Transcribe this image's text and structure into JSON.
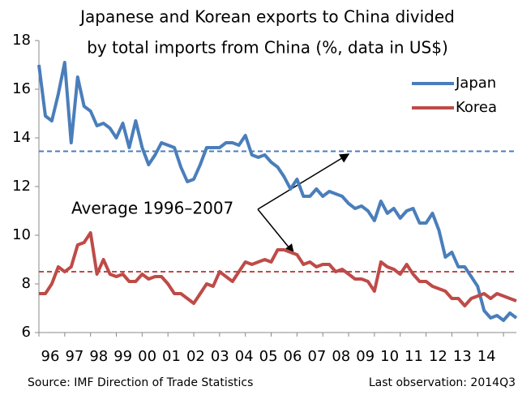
{
  "chart_data": {
    "type": "line",
    "title_lines": [
      "Japanese and Korean exports to China divided",
      "by total imports from China (%, data in US$)"
    ],
    "categories": [
      "96",
      null,
      null,
      null,
      "97",
      null,
      null,
      null,
      "98",
      null,
      null,
      null,
      "99",
      null,
      null,
      null,
      "00",
      null,
      null,
      null,
      "01",
      null,
      null,
      null,
      "02",
      null,
      null,
      null,
      "03",
      null,
      null,
      null,
      "04",
      null,
      null,
      null,
      "05",
      null,
      null,
      null,
      "06",
      null,
      null,
      null,
      "07",
      null,
      null,
      null,
      "08",
      null,
      null,
      null,
      "09",
      null,
      null,
      null,
      "10",
      null,
      null,
      null,
      "11",
      null,
      null,
      null,
      "12",
      null,
      null,
      null,
      "13",
      null,
      null,
      null,
      "14",
      null,
      null
    ],
    "series": [
      {
        "name": "Japan",
        "color": "#4a7ebb",
        "values": [
          17.0,
          14.9,
          14.7,
          15.8,
          17.1,
          13.8,
          16.5,
          15.3,
          15.1,
          14.5,
          14.6,
          14.4,
          14.0,
          14.6,
          13.6,
          14.7,
          13.6,
          12.9,
          13.3,
          13.8,
          13.7,
          13.6,
          12.8,
          12.2,
          12.3,
          12.9,
          13.6,
          13.6,
          13.6,
          13.8,
          13.8,
          13.7,
          14.1,
          13.3,
          13.2,
          13.3,
          13.0,
          12.8,
          12.4,
          11.9,
          12.3,
          11.6,
          11.6,
          11.9,
          11.6,
          11.8,
          11.7,
          11.6,
          11.3,
          11.1,
          11.2,
          11.0,
          10.6,
          11.4,
          10.9,
          11.1,
          10.7,
          11.0,
          11.1,
          10.5,
          10.5,
          10.9,
          10.2,
          9.1,
          9.3,
          8.7,
          8.7,
          8.3,
          7.9,
          6.9,
          6.6,
          6.7,
          6.5,
          6.8,
          6.6
        ]
      },
      {
        "name": "Korea",
        "color": "#be4b48",
        "values": [
          7.6,
          7.6,
          8.0,
          8.7,
          8.5,
          8.7,
          9.6,
          9.7,
          10.1,
          8.4,
          9.0,
          8.4,
          8.3,
          8.4,
          8.1,
          8.1,
          8.4,
          8.2,
          8.3,
          8.3,
          8.0,
          7.6,
          7.6,
          7.4,
          7.2,
          7.6,
          8.0,
          7.9,
          8.5,
          8.3,
          8.1,
          8.5,
          8.9,
          8.8,
          8.9,
          9.0,
          8.9,
          9.4,
          9.4,
          9.3,
          9.2,
          8.8,
          8.9,
          8.7,
          8.8,
          8.8,
          8.5,
          8.6,
          8.4,
          8.2,
          8.2,
          8.1,
          7.7,
          8.9,
          8.7,
          8.6,
          8.4,
          8.8,
          8.4,
          8.1,
          8.1,
          7.9,
          7.8,
          7.7,
          7.4,
          7.4,
          7.1,
          7.4,
          7.5,
          7.6,
          7.4,
          7.6,
          7.5,
          7.4,
          7.3
        ]
      }
    ],
    "reference_lines": [
      {
        "value": 13.45,
        "color": "#4a7ebb"
      },
      {
        "value": 8.5,
        "color": "#be4b48"
      }
    ],
    "annotation": "Average 1996–2007",
    "ylim": [
      6,
      18
    ],
    "yticks": [
      6,
      8,
      10,
      12,
      14,
      16,
      18
    ],
    "legend": "top-right",
    "source": "Source: IMF Direction of Trade Statistics",
    "last_observation": "Last observation: 2014Q3"
  }
}
